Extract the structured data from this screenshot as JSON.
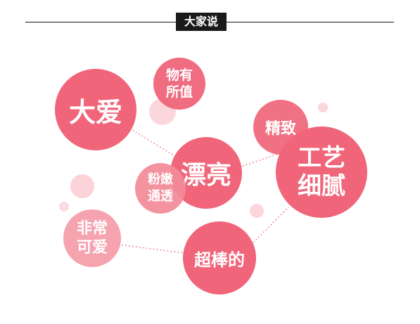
{
  "header": {
    "title": "大家说"
  },
  "bubbles": {
    "da_ai": "大爱",
    "wu_you_suo_zhi": "物有\n所值",
    "piao_liang": "漂亮",
    "fen_nen_tong_tou": "粉嫩\n通透",
    "jing_zhi": "精致",
    "gong_yi_xi_ni": "工艺\n细腻",
    "fei_chang_ke_ai": "非常\n可爱",
    "chao_bang_de": "超棒的"
  },
  "colors": {
    "primary_pink": "#f0657a",
    "light_pink": "#f6b3bd",
    "pale_pink": "#fbd3d9",
    "connector": "#f08aa0",
    "header_bg": "#1a1a1a"
  }
}
